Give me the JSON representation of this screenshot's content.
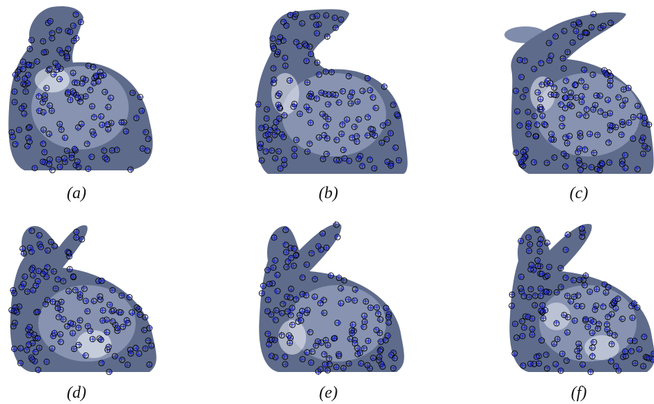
{
  "figure": {
    "panels": [
      {
        "id": "a",
        "caption": "(a)"
      },
      {
        "id": "b",
        "caption": "(b)"
      },
      {
        "id": "c",
        "caption": "(c)"
      },
      {
        "id": "d",
        "caption": "(d)"
      },
      {
        "id": "e",
        "caption": "(e)"
      },
      {
        "id": "f",
        "caption": "(f)"
      }
    ]
  },
  "colors": {
    "surface_dark": "#4d5a78",
    "surface_mid": "#7f8cab",
    "surface_light": "#e6ebf5",
    "marker_circle": "#000000",
    "marker_cross": "#1f2ad1"
  },
  "icons": [
    "bunny-surface-render",
    "circle-marker",
    "cross-marker"
  ]
}
